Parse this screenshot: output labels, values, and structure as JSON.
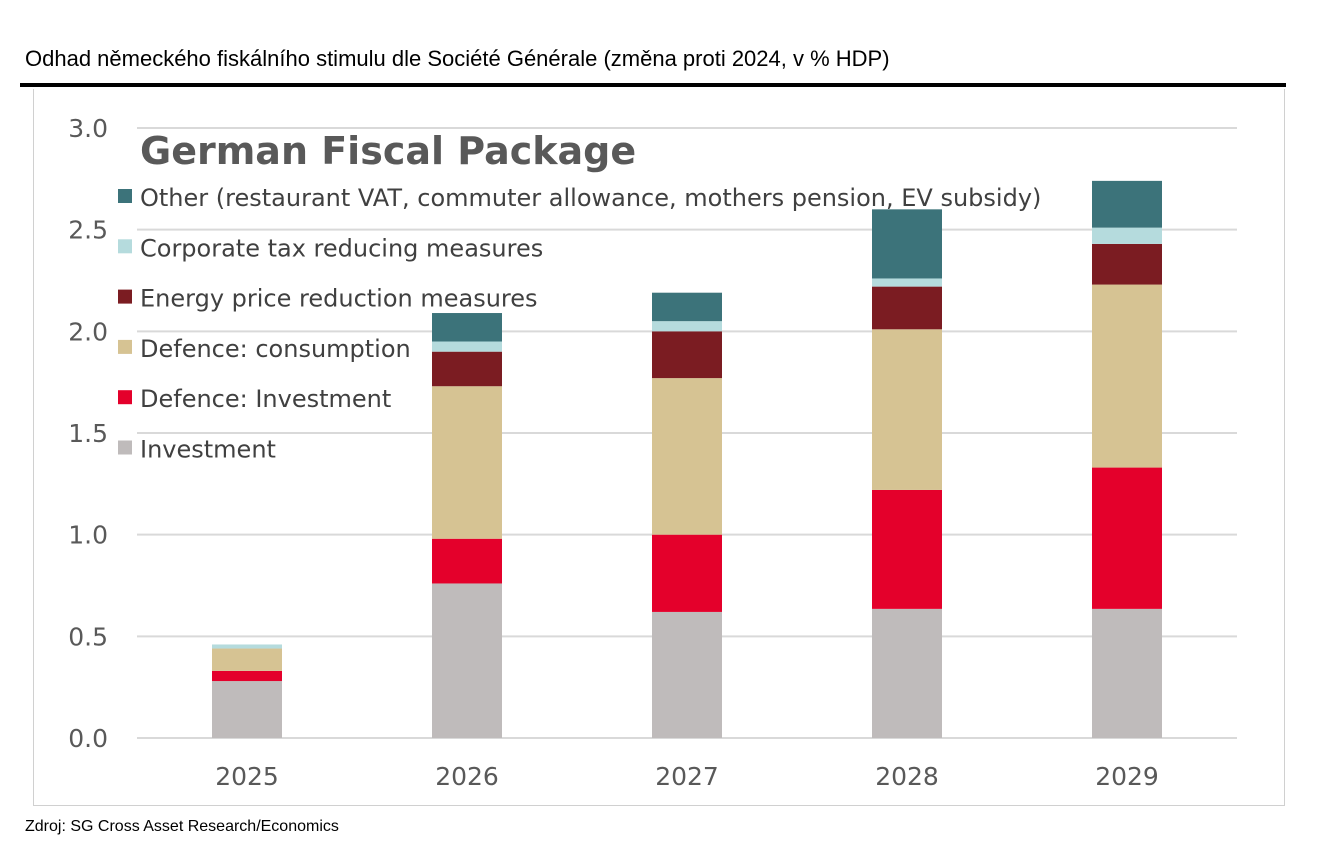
{
  "header": "Odhad německého fiskálního stimulu dle Société Générale (změna proti 2024, v % HDP)",
  "source": "Zdroj: SG Cross Asset Research/Economics",
  "chart_data": {
    "type": "bar",
    "stacked": true,
    "title": "German Fiscal Package",
    "categories": [
      "2025",
      "2026",
      "2027",
      "2028",
      "2029"
    ],
    "ylim": [
      0,
      3.0
    ],
    "yticks": [
      "0.0",
      "0.5",
      "1.0",
      "1.5",
      "2.0",
      "2.5",
      "3.0"
    ],
    "grid": true,
    "legend_placement": "top-left",
    "series": [
      {
        "name": "Investment",
        "color": "#bfbbbb",
        "values": [
          0.28,
          0.76,
          0.62,
          0.635,
          0.635
        ]
      },
      {
        "name": "Defence: Investment",
        "color": "#e4002b",
        "values": [
          0.05,
          0.22,
          0.38,
          0.585,
          0.695
        ]
      },
      {
        "name": "Defence: consumption",
        "color": "#d6c393",
        "values": [
          0.11,
          0.75,
          0.77,
          0.79,
          0.9
        ]
      },
      {
        "name": "Energy price reduction measures",
        "color": "#7b1c22",
        "values": [
          0.0,
          0.17,
          0.23,
          0.21,
          0.2
        ]
      },
      {
        "name": "Corporate tax reducing measures",
        "color": "#b5dbdd",
        "values": [
          0.02,
          0.05,
          0.05,
          0.04,
          0.08
        ]
      },
      {
        "name": "Other (restaurant VAT, commuter allowance, mothers pension, EV subsidy)",
        "color": "#3c737a",
        "values": [
          0.0,
          0.14,
          0.14,
          0.34,
          0.23
        ]
      }
    ]
  }
}
